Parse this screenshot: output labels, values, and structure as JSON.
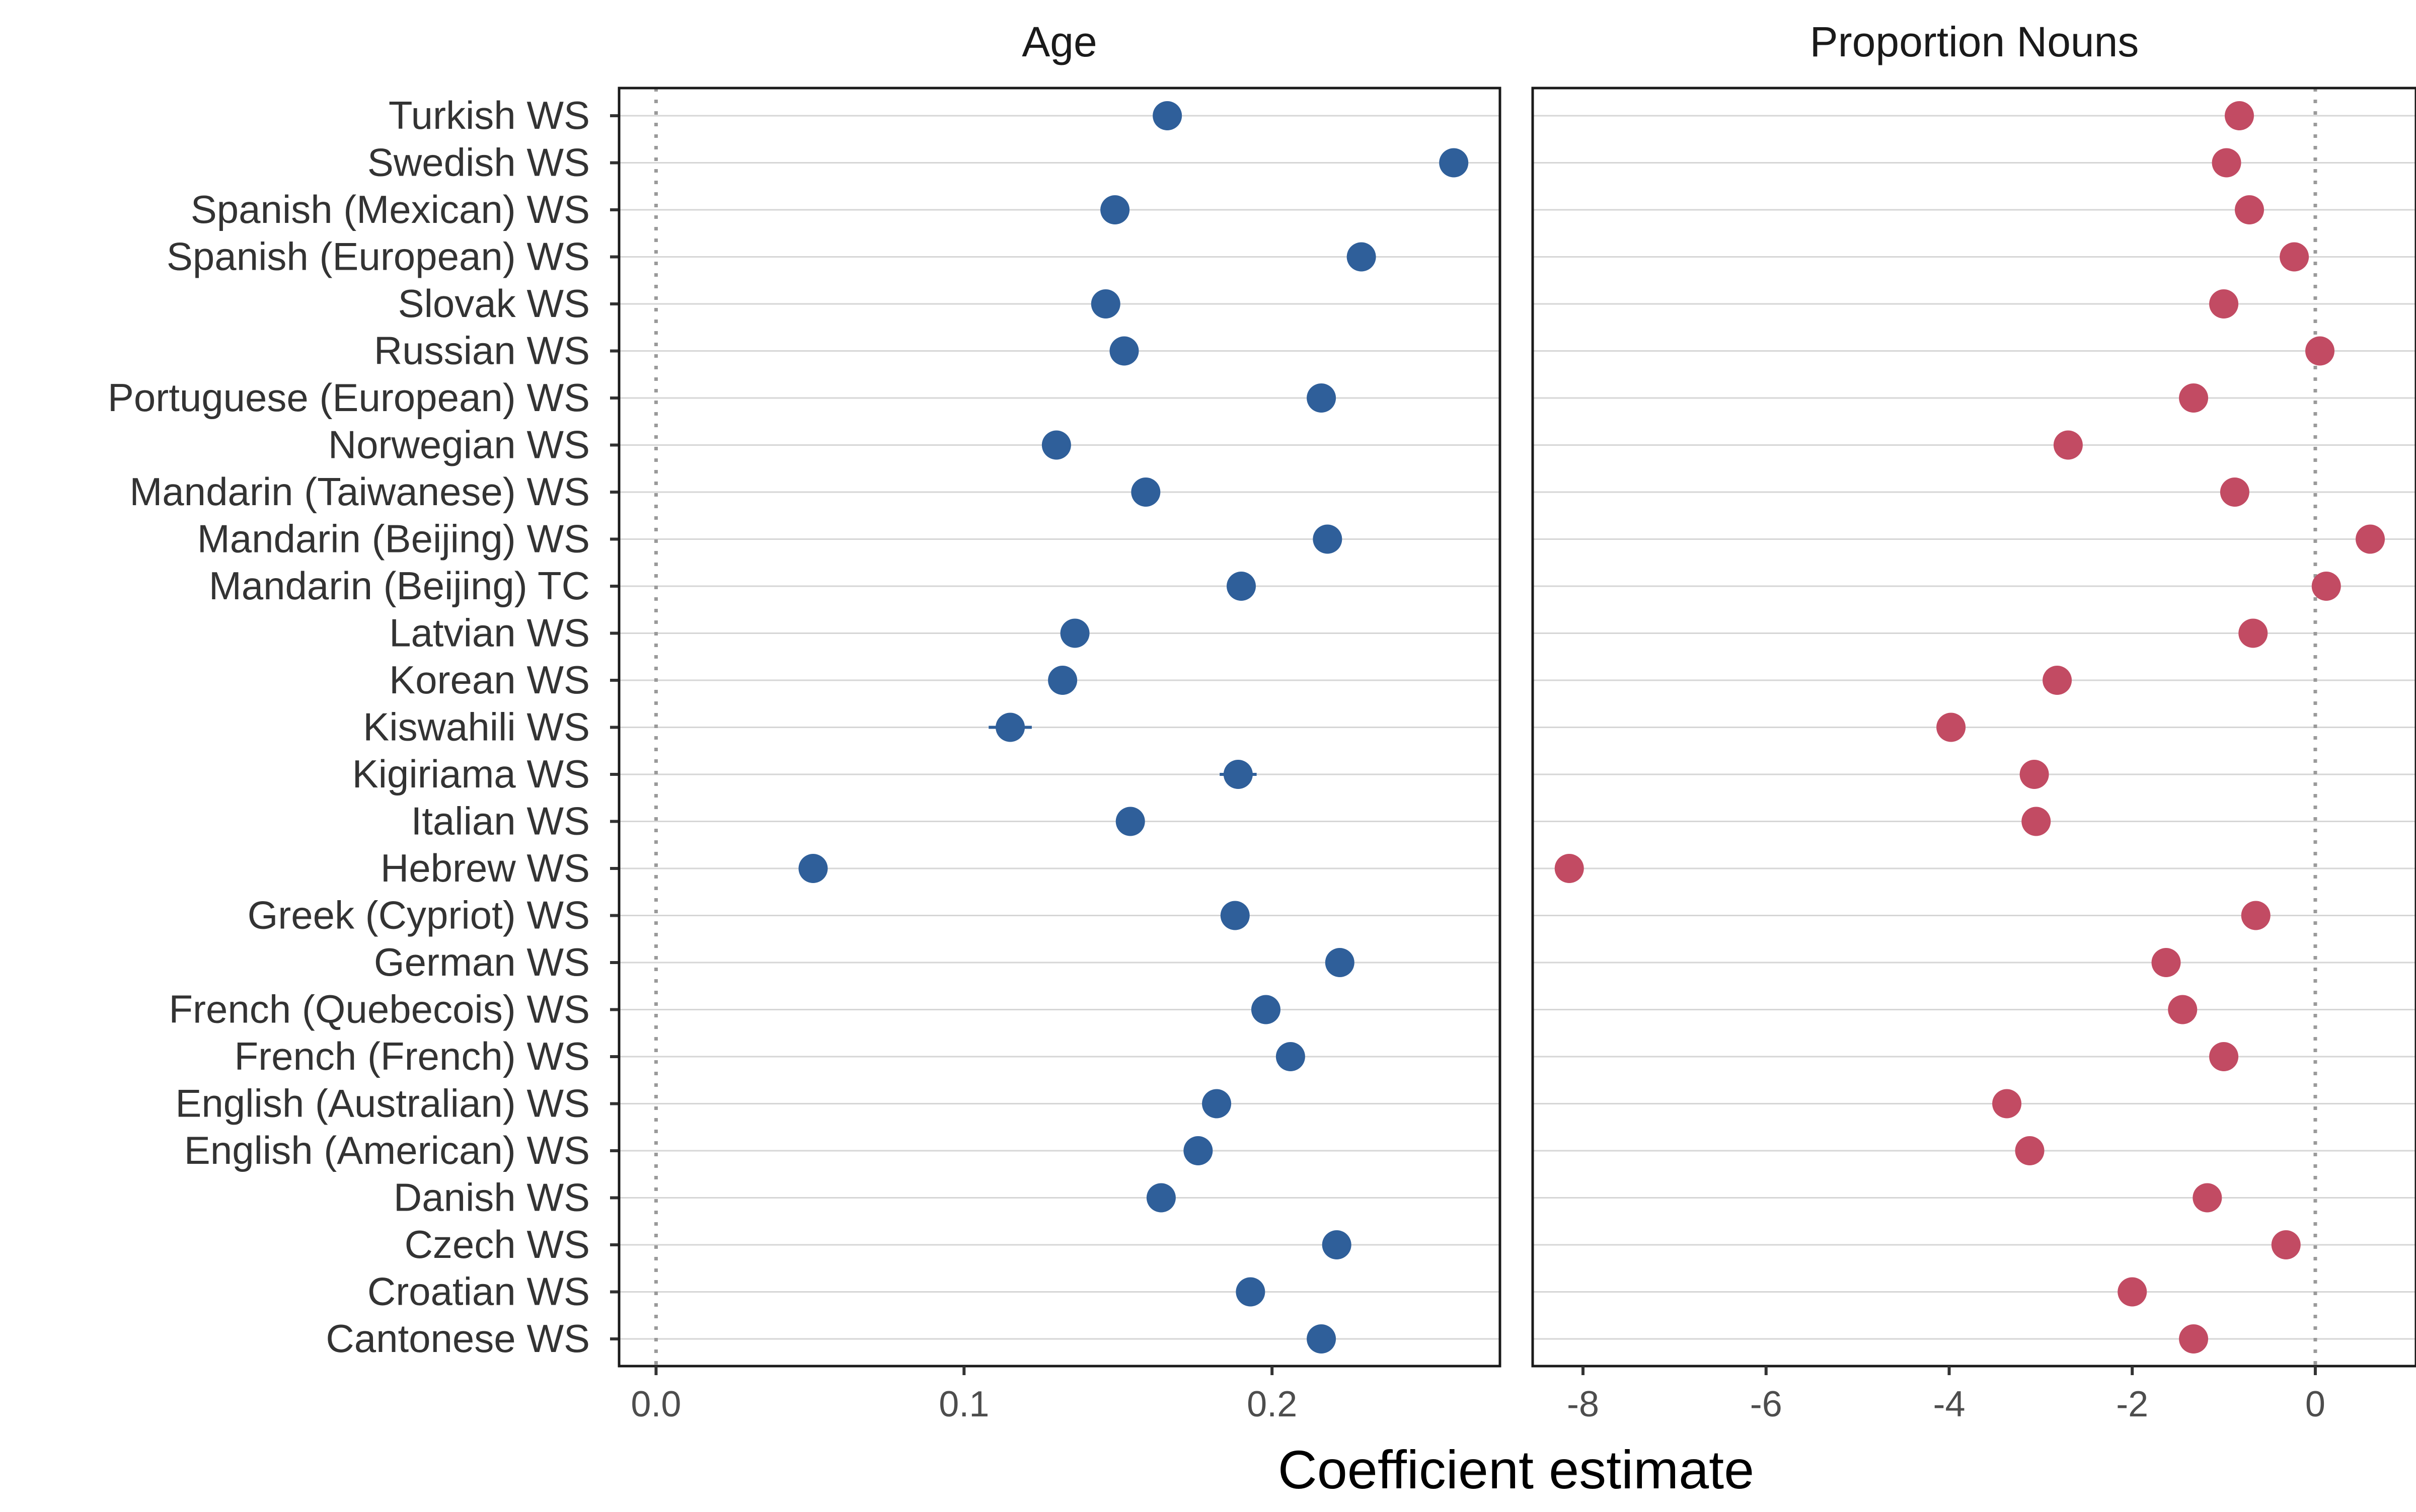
{
  "chart_data": {
    "type": "scatter",
    "xlabel": "Coefficient estimate",
    "categories": [
      "Turkish WS",
      "Swedish WS",
      "Spanish (Mexican) WS",
      "Spanish (European) WS",
      "Slovak WS",
      "Russian WS",
      "Portuguese (European) WS",
      "Norwegian WS",
      "Mandarin (Taiwanese) WS",
      "Mandarin (Beijing) WS",
      "Mandarin (Beijing) TC",
      "Latvian WS",
      "Korean WS",
      "Kiswahili WS",
      "Kigiriama WS",
      "Italian WS",
      "Hebrew WS",
      "Greek (Cypriot) WS",
      "German WS",
      "French (Quebecois) WS",
      "French (French) WS",
      "English (Australian) WS",
      "English (American) WS",
      "Danish WS",
      "Czech WS",
      "Croatian WS",
      "Cantonese WS"
    ],
    "panels": [
      {
        "title": "Age",
        "color": "#2f5f9a",
        "xlim": [
          -0.012,
          0.274
        ],
        "ticks": [
          0.0,
          0.1,
          0.2
        ],
        "tick_labels": [
          "0.0",
          "0.1",
          "0.2"
        ],
        "reference_line": 0,
        "values": [
          0.166,
          0.259,
          0.149,
          0.229,
          0.146,
          0.152,
          0.216,
          0.13,
          0.159,
          0.218,
          0.19,
          0.136,
          0.132,
          0.115,
          0.189,
          0.154,
          0.051,
          0.188,
          0.222,
          0.198,
          0.206,
          0.182,
          0.176,
          0.164,
          0.221,
          0.193,
          0.216
        ],
        "errors": [
          0.002,
          0.002,
          0.002,
          0.002,
          0.002,
          0.002,
          0.002,
          0.002,
          0.002,
          0.002,
          0.002,
          0.002,
          0.002,
          0.007,
          0.006,
          0.002,
          0.002,
          0.002,
          0.002,
          0.002,
          0.002,
          0.002,
          0.002,
          0.002,
          0.002,
          0.002,
          0.002
        ]
      },
      {
        "title": "Proportion Nouns",
        "color": "#c24b63",
        "xlim": [
          -8.55,
          1.1
        ],
        "ticks": [
          -8,
          -6,
          -4,
          -2,
          0
        ],
        "tick_labels": [
          "-8",
          "-6",
          "-4",
          "-2",
          "0"
        ],
        "reference_line": 0,
        "values": [
          -0.83,
          -0.97,
          -0.72,
          -0.23,
          -1.0,
          0.05,
          -1.33,
          -2.7,
          -0.88,
          0.6,
          0.12,
          -0.68,
          -2.82,
          -3.98,
          -3.07,
          -3.05,
          -8.15,
          -0.65,
          -1.63,
          -1.45,
          -1.0,
          -3.37,
          -3.12,
          -1.18,
          -0.32,
          -2.0,
          -1.33
        ],
        "errors": [
          0.05,
          0.05,
          0.05,
          0.05,
          0.05,
          0.05,
          0.05,
          0.05,
          0.05,
          0.05,
          0.05,
          0.05,
          0.05,
          0.05,
          0.05,
          0.05,
          0.05,
          0.05,
          0.05,
          0.05,
          0.05,
          0.05,
          0.05,
          0.05,
          0.05,
          0.05,
          0.05
        ]
      }
    ]
  }
}
